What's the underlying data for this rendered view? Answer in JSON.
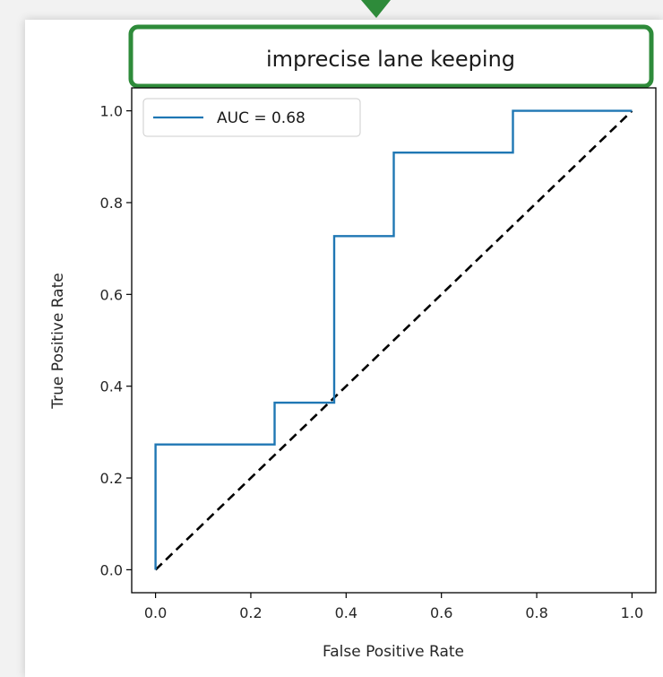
{
  "chart_data": {
    "type": "line",
    "title": "imprecise lane keeping",
    "xlabel": "False Positive Rate",
    "ylabel": "True Positive Rate",
    "xlim": [
      -0.05,
      1.05
    ],
    "ylim": [
      -0.05,
      1.05
    ],
    "xticks": [
      0.0,
      0.2,
      0.4,
      0.6,
      0.8,
      1.0
    ],
    "yticks": [
      0.0,
      0.2,
      0.4,
      0.6,
      0.8,
      1.0
    ],
    "xtick_labels": [
      "0.0",
      "0.2",
      "0.4",
      "0.6",
      "0.8",
      "1.0"
    ],
    "ytick_labels": [
      "0.0",
      "0.2",
      "0.4",
      "0.6",
      "0.8",
      "1.0"
    ],
    "grid": false,
    "legend_position": "top-left",
    "title_box_color": "#2e8b3a",
    "arrow_color": "#2e8b3a",
    "series": [
      {
        "name": "AUC = 0.68",
        "color": "#1f77b4",
        "style": "solid",
        "x": [
          0.0,
          0.0,
          0.25,
          0.25,
          0.375,
          0.375,
          0.5,
          0.5,
          0.75,
          0.75,
          1.0
        ],
        "y": [
          0.0,
          0.273,
          0.273,
          0.364,
          0.364,
          0.727,
          0.727,
          0.909,
          0.909,
          1.0,
          1.0
        ]
      },
      {
        "color": "#000000",
        "style": "dashed",
        "x": [
          0.0,
          1.0
        ],
        "y": [
          0.0,
          1.0
        ]
      }
    ]
  }
}
